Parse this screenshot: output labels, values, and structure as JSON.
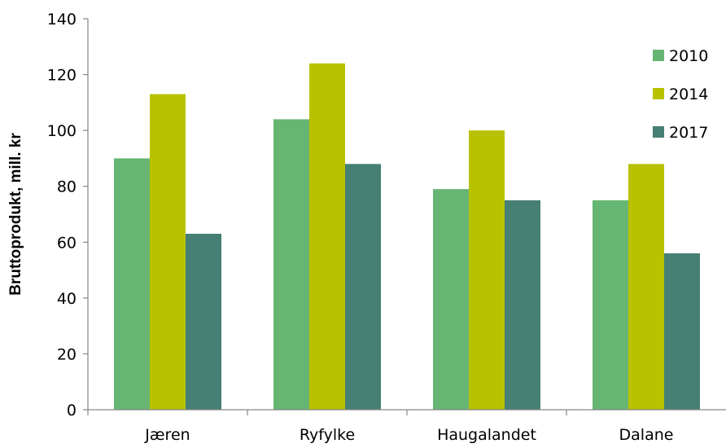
{
  "chart_data": {
    "type": "bar",
    "title": "",
    "xlabel": "",
    "ylabel": "Bruttoprodukt, mill. kr",
    "categories": [
      "Jæren",
      "Ryfylke",
      "Haugalandet",
      "Dalane"
    ],
    "series": [
      {
        "name": "2010",
        "color": "#66b573",
        "values": [
          90,
          104,
          79,
          75
        ]
      },
      {
        "name": "2014",
        "color": "#b9c200",
        "values": [
          113,
          124,
          100,
          88
        ]
      },
      {
        "name": "2017",
        "color": "#467f74",
        "values": [
          63,
          88,
          75,
          56
        ]
      }
    ],
    "ylim": [
      0,
      140
    ],
    "yticks": [
      "0",
      "20",
      "40",
      "60",
      "80",
      "100",
      "120",
      "140"
    ],
    "grid": false,
    "legend_position": "top-right"
  }
}
